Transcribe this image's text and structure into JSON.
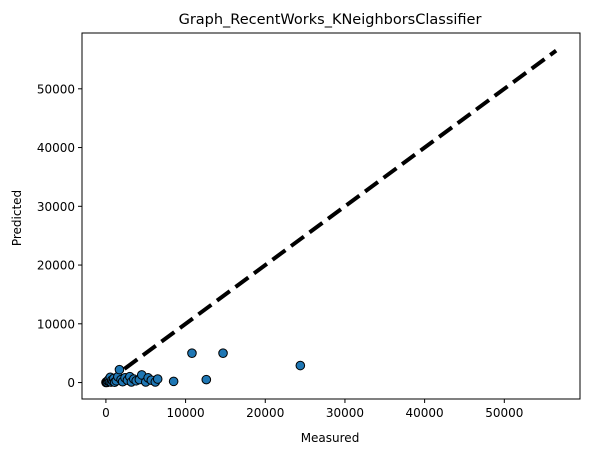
{
  "chart_data": {
    "type": "scatter",
    "title": "Graph_RecentWorks_KNeighborsClassifier",
    "xlabel": "Measured",
    "ylabel": "Predicted",
    "xlim": [
      -3000,
      59500
    ],
    "ylim": [
      -2800,
      59500
    ],
    "xticks": [
      0,
      10000,
      20000,
      30000,
      40000,
      50000
    ],
    "yticks": [
      0,
      10000,
      20000,
      30000,
      40000,
      50000
    ],
    "grid": false,
    "reference_line": {
      "style": "dashed",
      "color": "#000000",
      "from": [
        0,
        0
      ],
      "to": [
        56500,
        56500
      ]
    },
    "marker_color": "#1f77b4",
    "marker_edge_color": "#000000",
    "points": [
      {
        "x": 10,
        "y": 20
      },
      {
        "x": 60,
        "y": 120
      },
      {
        "x": 150,
        "y": 40
      },
      {
        "x": 250,
        "y": 250
      },
      {
        "x": 350,
        "y": 500
      },
      {
        "x": 450,
        "y": 150
      },
      {
        "x": 550,
        "y": 900
      },
      {
        "x": 650,
        "y": 80
      },
      {
        "x": 750,
        "y": 400
      },
      {
        "x": 900,
        "y": 200
      },
      {
        "x": 1000,
        "y": 700
      },
      {
        "x": 1100,
        "y": 60
      },
      {
        "x": 1300,
        "y": 300
      },
      {
        "x": 1500,
        "y": 1000
      },
      {
        "x": 1700,
        "y": 2200
      },
      {
        "x": 1900,
        "y": 500
      },
      {
        "x": 2100,
        "y": 150
      },
      {
        "x": 2400,
        "y": 800
      },
      {
        "x": 2700,
        "y": 400
      },
      {
        "x": 3000,
        "y": 1000
      },
      {
        "x": 3200,
        "y": 100
      },
      {
        "x": 3500,
        "y": 600
      },
      {
        "x": 3800,
        "y": 300
      },
      {
        "x": 4200,
        "y": 500
      },
      {
        "x": 4500,
        "y": 1300
      },
      {
        "x": 5000,
        "y": 100
      },
      {
        "x": 5300,
        "y": 800
      },
      {
        "x": 5700,
        "y": 400
      },
      {
        "x": 6200,
        "y": 100
      },
      {
        "x": 6500,
        "y": 600
      },
      {
        "x": 8500,
        "y": 200
      },
      {
        "x": 10800,
        "y": 5000
      },
      {
        "x": 12600,
        "y": 500
      },
      {
        "x": 14700,
        "y": 5000
      },
      {
        "x": 24400,
        "y": 2900
      }
    ]
  }
}
